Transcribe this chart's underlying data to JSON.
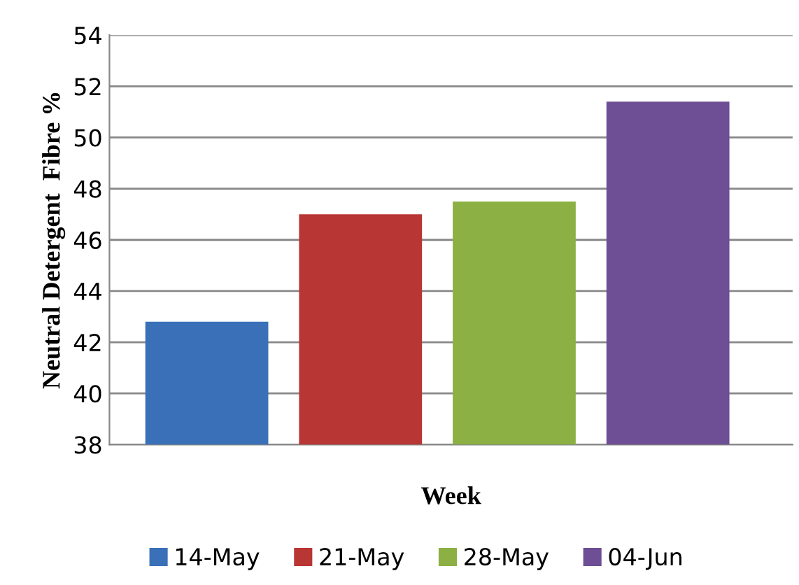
{
  "chart_data": {
    "type": "bar",
    "xlabel": "Week",
    "ylabel": "Neutral Detergent  Fibre %",
    "categories": [
      null
    ],
    "series": [
      {
        "name": "14-May",
        "color": "#3a70b8",
        "values": [
          42.8
        ]
      },
      {
        "name": "21-May",
        "color": "#b83633",
        "values": [
          47.0
        ]
      },
      {
        "name": "28-May",
        "color": "#8cb043",
        "values": [
          47.5
        ]
      },
      {
        "name": "04-Jun",
        "color": "#6e4e95",
        "values": [
          51.4
        ]
      }
    ],
    "ylim": [
      38,
      54
    ],
    "yticks": [
      38,
      40,
      42,
      44,
      46,
      48,
      50,
      52,
      54
    ],
    "grid": "y",
    "legend": "bottom"
  }
}
